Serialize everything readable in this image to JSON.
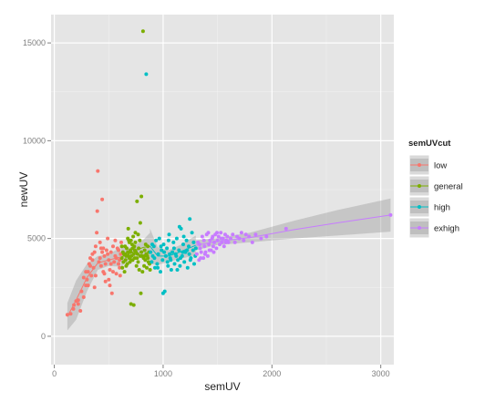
{
  "chart_data": {
    "type": "scatter",
    "xlabel": "semUV",
    "ylabel": "newUV",
    "xlim": [
      -30,
      3120
    ],
    "ylim": [
      -1450,
      16450
    ],
    "x_ticks": [
      0,
      1000,
      2000,
      3000
    ],
    "y_ticks": [
      0,
      5000,
      10000,
      15000
    ],
    "x_tick_labels": [
      "0",
      "1000",
      "2000",
      "3000"
    ],
    "y_tick_labels": [
      "0",
      "5000",
      "10000",
      "15000"
    ],
    "background": "#e5e5e5",
    "grid": true,
    "grid_color": "#ffffff",
    "legend": {
      "title": "semUVcut",
      "position": "right",
      "entries": [
        "low",
        "general",
        "high",
        "exhigh"
      ]
    },
    "colors": {
      "low": "#f8766d",
      "general": "#7cae00",
      "high": "#00bfc4",
      "exhigh": "#c77cff"
    },
    "series": [
      {
        "name": "low",
        "points": [
          [
            120,
            1100
          ],
          [
            150,
            1150
          ],
          [
            175,
            1400
          ],
          [
            200,
            1800
          ],
          [
            220,
            1650
          ],
          [
            240,
            1300
          ],
          [
            250,
            2300
          ],
          [
            270,
            2000
          ],
          [
            290,
            2600
          ],
          [
            300,
            2900
          ],
          [
            310,
            3300
          ],
          [
            320,
            3700
          ],
          [
            330,
            4000
          ],
          [
            340,
            3100
          ],
          [
            350,
            4200
          ],
          [
            360,
            3500
          ],
          [
            370,
            2500
          ],
          [
            380,
            4600
          ],
          [
            390,
            5300
          ],
          [
            395,
            6400
          ],
          [
            400,
            8450
          ],
          [
            410,
            3800
          ],
          [
            420,
            4800
          ],
          [
            430,
            3600
          ],
          [
            440,
            7000
          ],
          [
            450,
            3300
          ],
          [
            460,
            4100
          ],
          [
            470,
            2800
          ],
          [
            480,
            4400
          ],
          [
            490,
            5000
          ],
          [
            500,
            3900
          ],
          [
            510,
            3400
          ],
          [
            520,
            4300
          ],
          [
            530,
            2200
          ],
          [
            540,
            4600
          ],
          [
            550,
            3800
          ],
          [
            560,
            4100
          ],
          [
            570,
            3200
          ],
          [
            580,
            4500
          ],
          [
            590,
            3700
          ],
          [
            600,
            3900
          ],
          [
            610,
            4200
          ],
          [
            605,
            3100
          ],
          [
            615,
            4800
          ],
          [
            430,
            4500
          ],
          [
            350,
            3900
          ],
          [
            460,
            3200
          ],
          [
            520,
            3700
          ],
          [
            560,
            4900
          ],
          [
            490,
            4200
          ],
          [
            470,
            3700
          ],
          [
            330,
            3600
          ],
          [
            570,
            4000
          ],
          [
            600,
            3500
          ],
          [
            380,
            3100
          ],
          [
            420,
            4000
          ],
          [
            450,
            4500
          ],
          [
            540,
            3300
          ],
          [
            310,
            2600
          ],
          [
            290,
            3300
          ],
          [
            270,
            3000
          ],
          [
            510,
            2600
          ],
          [
            370,
            4300
          ],
          [
            500,
            2900
          ],
          [
            440,
            4300
          ],
          [
            590,
            4400
          ],
          [
            220,
            1850
          ],
          [
            180,
            1600
          ]
        ]
      },
      {
        "name": "general",
        "points": [
          [
            620,
            4000
          ],
          [
            625,
            3500
          ],
          [
            630,
            4300
          ],
          [
            635,
            3800
          ],
          [
            640,
            4200
          ],
          [
            645,
            3300
          ],
          [
            650,
            4600
          ],
          [
            655,
            3900
          ],
          [
            660,
            4100
          ],
          [
            665,
            4500
          ],
          [
            670,
            3700
          ],
          [
            675,
            4300
          ],
          [
            680,
            5500
          ],
          [
            685,
            4900
          ],
          [
            690,
            4000
          ],
          [
            695,
            3800
          ],
          [
            700,
            4400
          ],
          [
            705,
            1650
          ],
          [
            710,
            4100
          ],
          [
            715,
            4700
          ],
          [
            720,
            3900
          ],
          [
            725,
            5100
          ],
          [
            730,
            1600
          ],
          [
            735,
            4600
          ],
          [
            740,
            4000
          ],
          [
            745,
            4800
          ],
          [
            750,
            4300
          ],
          [
            755,
            3600
          ],
          [
            760,
            6900
          ],
          [
            765,
            4200
          ],
          [
            770,
            5200
          ],
          [
            775,
            4500
          ],
          [
            780,
            3400
          ],
          [
            785,
            4900
          ],
          [
            790,
            5800
          ],
          [
            795,
            2200
          ],
          [
            800,
            7150
          ],
          [
            805,
            4100
          ],
          [
            810,
            3300
          ],
          [
            815,
            15600
          ],
          [
            820,
            4000
          ],
          [
            825,
            3600
          ],
          [
            830,
            4400
          ],
          [
            835,
            3900
          ],
          [
            840,
            4700
          ],
          [
            845,
            4200
          ],
          [
            850,
            3500
          ],
          [
            855,
            4100
          ],
          [
            860,
            4600
          ],
          [
            865,
            3800
          ],
          [
            870,
            4300
          ],
          [
            875,
            3700
          ],
          [
            880,
            3400
          ],
          [
            700,
            4300
          ],
          [
            730,
            4200
          ],
          [
            760,
            4000
          ],
          [
            790,
            4100
          ],
          [
            660,
            3600
          ],
          [
            690,
            4800
          ],
          [
            720,
            4500
          ],
          [
            650,
            4200
          ],
          [
            680,
            4100
          ],
          [
            710,
            3900
          ],
          [
            740,
            4400
          ],
          [
            770,
            3800
          ],
          [
            800,
            4300
          ],
          [
            830,
            4100
          ],
          [
            860,
            4000
          ],
          [
            620,
            4600
          ],
          [
            675,
            5000
          ],
          [
            705,
            4900
          ],
          [
            745,
            5300
          ]
        ]
      },
      {
        "name": "high",
        "points": [
          [
            845,
            13400
          ],
          [
            885,
            4300
          ],
          [
            895,
            3800
          ],
          [
            905,
            4100
          ],
          [
            915,
            4600
          ],
          [
            925,
            3500
          ],
          [
            935,
            4900
          ],
          [
            945,
            3700
          ],
          [
            955,
            4200
          ],
          [
            965,
            5000
          ],
          [
            975,
            3300
          ],
          [
            985,
            4400
          ],
          [
            995,
            3900
          ],
          [
            1005,
            4700
          ],
          [
            1015,
            2300
          ],
          [
            1025,
            4100
          ],
          [
            1035,
            4500
          ],
          [
            1045,
            3600
          ],
          [
            1055,
            5200
          ],
          [
            1065,
            4000
          ],
          [
            1075,
            3400
          ],
          [
            1085,
            4300
          ],
          [
            1095,
            4800
          ],
          [
            1105,
            3700
          ],
          [
            1115,
            4200
          ],
          [
            1125,
            5000
          ],
          [
            1135,
            3900
          ],
          [
            1145,
            4400
          ],
          [
            1155,
            3600
          ],
          [
            1165,
            5500
          ],
          [
            1175,
            4100
          ],
          [
            1185,
            4700
          ],
          [
            1195,
            3800
          ],
          [
            1205,
            4300
          ],
          [
            1215,
            4900
          ],
          [
            1225,
            3500
          ],
          [
            1235,
            4600
          ],
          [
            1245,
            6000
          ],
          [
            1255,
            4000
          ],
          [
            1265,
            5300
          ],
          [
            1275,
            4400
          ],
          [
            1285,
            3700
          ],
          [
            1295,
            4100
          ],
          [
            1000,
            2200
          ],
          [
            1060,
            4200
          ],
          [
            1120,
            4100
          ],
          [
            1180,
            4300
          ],
          [
            1240,
            4200
          ],
          [
            920,
            4000
          ],
          [
            980,
            4600
          ],
          [
            1040,
            3800
          ],
          [
            1100,
            4500
          ],
          [
            1160,
            4000
          ],
          [
            1220,
            4400
          ],
          [
            1280,
            4800
          ],
          [
            950,
            3500
          ],
          [
            1010,
            4300
          ],
          [
            1070,
            3900
          ],
          [
            1130,
            3400
          ],
          [
            1190,
            5100
          ],
          [
            1250,
            3900
          ],
          [
            1300,
            4500
          ],
          [
            900,
            4700
          ],
          [
            1150,
            5600
          ],
          [
            1050,
            4900
          ]
        ]
      },
      {
        "name": "exhigh",
        "points": [
          [
            1310,
            4200
          ],
          [
            1320,
            4800
          ],
          [
            1330,
            3900
          ],
          [
            1340,
            4500
          ],
          [
            1350,
            4300
          ],
          [
            1360,
            5100
          ],
          [
            1370,
            4000
          ],
          [
            1380,
            4600
          ],
          [
            1390,
            4300
          ],
          [
            1400,
            5200
          ],
          [
            1410,
            4100
          ],
          [
            1420,
            4700
          ],
          [
            1430,
            4900
          ],
          [
            1440,
            4400
          ],
          [
            1450,
            5000
          ],
          [
            1460,
            4600
          ],
          [
            1470,
            4800
          ],
          [
            1480,
            5200
          ],
          [
            1490,
            4500
          ],
          [
            1500,
            4900
          ],
          [
            1510,
            5100
          ],
          [
            1520,
            4700
          ],
          [
            1530,
            5300
          ],
          [
            1540,
            4800
          ],
          [
            1550,
            5000
          ],
          [
            1560,
            4600
          ],
          [
            1570,
            5200
          ],
          [
            1580,
            4900
          ],
          [
            1590,
            5100
          ],
          [
            1600,
            4800
          ],
          [
            1620,
            5000
          ],
          [
            1640,
            5200
          ],
          [
            1660,
            4800
          ],
          [
            1680,
            5100
          ],
          [
            1700,
            5000
          ],
          [
            1720,
            5300
          ],
          [
            1740,
            4900
          ],
          [
            1760,
            5200
          ],
          [
            1790,
            5100
          ],
          [
            1820,
            4800
          ],
          [
            1850,
            5200
          ],
          [
            1900,
            5000
          ],
          [
            1950,
            5100
          ],
          [
            2130,
            5500
          ],
          [
            3090,
            6200
          ],
          [
            1335,
            4700
          ],
          [
            1375,
            4900
          ],
          [
            1415,
            5300
          ],
          [
            1455,
            5100
          ],
          [
            1495,
            5300
          ],
          [
            1535,
            5000
          ],
          [
            1575,
            4800
          ],
          [
            1345,
            4000
          ],
          [
            1385,
            4200
          ],
          [
            1425,
            4400
          ],
          [
            1465,
            4300
          ]
        ]
      }
    ],
    "smooths": [
      {
        "name": "low",
        "x": [
          120,
          200,
          300,
          400,
          500,
          610
        ],
        "y": [
          1000,
          1850,
          3000,
          3750,
          3900,
          4050
        ],
        "band": [
          700,
          1000,
          700,
          350,
          300,
          500
        ]
      },
      {
        "name": "general",
        "x": [
          615,
          680,
          750,
          820,
          880
        ],
        "y": [
          4050,
          4200,
          4400,
          4550,
          4600
        ],
        "band": [
          500,
          300,
          280,
          400,
          700
        ]
      },
      {
        "name": "high",
        "x": [
          880,
          950,
          1050,
          1150,
          1300
        ],
        "y": [
          4600,
          4100,
          4100,
          4300,
          4650
        ],
        "band": [
          900,
          450,
          300,
          350,
          500
        ]
      },
      {
        "name": "exhigh",
        "x": [
          1300,
          1500,
          1800,
          2200,
          2600,
          3090
        ],
        "y": [
          4650,
          4850,
          5050,
          5450,
          5800,
          6200
        ],
        "band": [
          250,
          180,
          250,
          450,
          650,
          850
        ]
      }
    ]
  }
}
